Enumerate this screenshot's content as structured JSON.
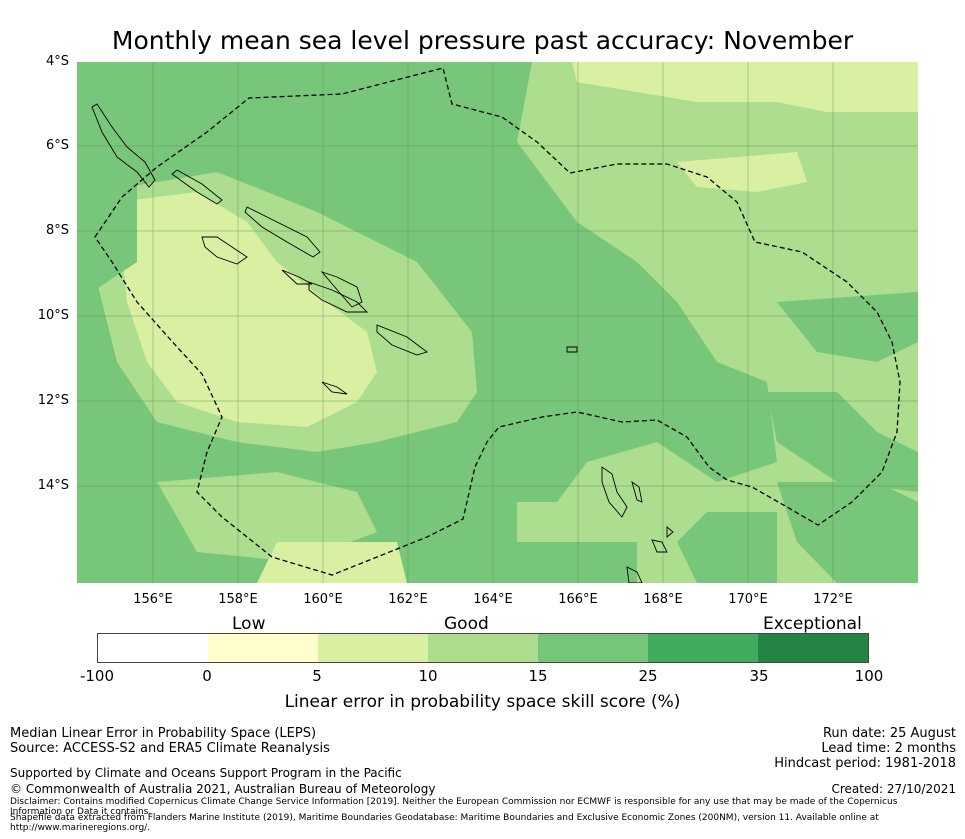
{
  "title": "Monthly mean sea level pressure past accuracy: November",
  "map": {
    "lat_labels": [
      "4°S",
      "6°S",
      "8°S",
      "10°S",
      "12°S",
      "14°S"
    ],
    "lon_labels": [
      "156°E",
      "158°E",
      "160°E",
      "162°E",
      "164°E",
      "166°E",
      "168°E",
      "170°E",
      "172°E"
    ],
    "colors": {
      "low_yellow": "#ffffcc",
      "light_yellow_green": "#d9f0a3",
      "light_green": "#addd8e",
      "mid_green": "#78c679",
      "green": "#41ab5d",
      "dark_green": "#238443"
    }
  },
  "colorbar": {
    "categories": [
      "Low",
      "Good",
      "Exceptional"
    ],
    "ticks": [
      "-100",
      "0",
      "5",
      "10",
      "15",
      "25",
      "35",
      "100"
    ],
    "colors": [
      "#ffffff",
      "#ffffcc",
      "#d9f0a3",
      "#addd8e",
      "#78c679",
      "#41ab5d",
      "#238443"
    ],
    "title": "Linear error in probability space skill score (%)"
  },
  "footer": {
    "left_line1": "Median Linear Error in Probability Space (LEPS)",
    "left_line2": "Source: ACCESS-S2 and ERA5 Climate Reanalysis",
    "support": "Supported by Climate and Oceans Support Program in the Pacific",
    "copyright": "© Commonwealth of Australia 2021, Australian Bureau of Meteorology",
    "disclaimer1": "Disclaimer: Contains modified Copernicus Climate Change Service Information [2019]. Neither the European Commission nor ECMWF is responsible for any use that may be made of the Copernicus Information or Data it contains.",
    "disclaimer2": "Shapefile data extracted from Flanders Marine Institute (2019), Maritime Boundaries Geodatabase: Maritime Boundaries and Exclusive Economic Zones (200NM), version 11. Available online at http://www.marineregions.org/.",
    "run_date": "Run date: 25 August",
    "lead_time": "Lead time: 2 months",
    "hindcast": "Hindcast period: 1981-2018",
    "created": "Created: 27/10/2021"
  }
}
